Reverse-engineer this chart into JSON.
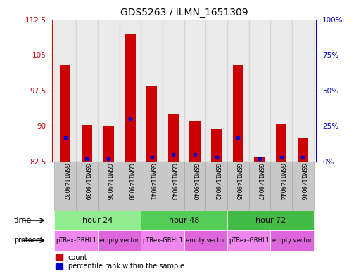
{
  "title": "GDS5263 / ILMN_1651309",
  "samples": [
    "GSM1149037",
    "GSM1149039",
    "GSM1149036",
    "GSM1149038",
    "GSM1149041",
    "GSM1149043",
    "GSM1149040",
    "GSM1149042",
    "GSM1149045",
    "GSM1149047",
    "GSM1149044",
    "GSM1149046"
  ],
  "count_values": [
    103.0,
    90.2,
    90.0,
    109.5,
    98.5,
    92.5,
    91.0,
    89.5,
    103.0,
    83.5,
    90.5,
    87.5
  ],
  "percentile_values": [
    17,
    2,
    2,
    30,
    3,
    5,
    5,
    3,
    17,
    2,
    3,
    3
  ],
  "ylim_left": [
    82.5,
    112.5
  ],
  "ylim_right": [
    0,
    100
  ],
  "yticks_left": [
    82.5,
    90,
    97.5,
    105,
    112.5
  ],
  "yticks_right": [
    0,
    25,
    50,
    75,
    100
  ],
  "ytick_labels_left": [
    "82.5",
    "90",
    "97.5",
    "105",
    "112.5"
  ],
  "ytick_labels_right": [
    "0%",
    "25%",
    "50%",
    "75%",
    "100%"
  ],
  "time_groups": [
    {
      "label": "hour 24",
      "start": 0,
      "end": 4,
      "color": "#90EE90"
    },
    {
      "label": "hour 48",
      "start": 4,
      "end": 8,
      "color": "#55CC55"
    },
    {
      "label": "hour 72",
      "start": 8,
      "end": 12,
      "color": "#44BB44"
    }
  ],
  "protocol_groups": [
    {
      "label": "pTRex-GRHL1",
      "start": 0,
      "end": 2,
      "color": "#EE88EE"
    },
    {
      "label": "empty vector",
      "start": 2,
      "end": 4,
      "color": "#DD66DD"
    },
    {
      "label": "pTRex-GRHL1",
      "start": 4,
      "end": 6,
      "color": "#EE88EE"
    },
    {
      "label": "empty vector",
      "start": 6,
      "end": 8,
      "color": "#DD66DD"
    },
    {
      "label": "pTRex-GRHL1",
      "start": 8,
      "end": 10,
      "color": "#EE88EE"
    },
    {
      "label": "empty vector",
      "start": 10,
      "end": 12,
      "color": "#DD66DD"
    }
  ],
  "bar_color": "#CC0000",
  "percentile_color": "#0000CC",
  "bar_width": 0.5,
  "background_color": "#ffffff",
  "sample_bg_color": "#C8C8C8"
}
